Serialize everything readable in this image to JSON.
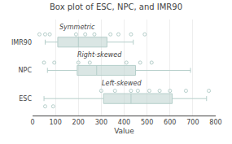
{
  "chart_data": {
    "type": "box",
    "orientation": "horizontal",
    "title": "Box plot of ESC, NPC, and IMR90",
    "xlabel": "Value",
    "categories": [
      "ESC",
      "NPC",
      "IMR90"
    ],
    "q1": [
      310,
      195,
      110
    ],
    "median": [
      430,
      280,
      200
    ],
    "q3": [
      610,
      450,
      325
    ],
    "whisker_low": [
      50,
      65,
      55
    ],
    "whisker_high": [
      760,
      690,
      440
    ],
    "outliers_above": [
      [
        300,
        360,
        430,
        460,
        510,
        555,
        600,
        670,
        770
      ],
      [
        50,
        95,
        200,
        250,
        410,
        470,
        520
      ],
      [
        30,
        55,
        75,
        190,
        230,
        270,
        340,
        375,
        430,
        490
      ]
    ],
    "outliers_below": [
      [
        55,
        90
      ],
      [],
      []
    ],
    "annotations": [
      {
        "text": "Left-skewed",
        "x": 390,
        "category": "ESC"
      },
      {
        "text": "Right-skewed",
        "x": 295,
        "category": "NPC"
      },
      {
        "text": "Symmetric",
        "x": 195,
        "category": "IMR90"
      }
    ],
    "xlim": [
      0,
      800
    ],
    "xticks": [
      0,
      100,
      200,
      300,
      400,
      500,
      600,
      700,
      800
    ],
    "grid": true,
    "color": "#b5ceca"
  }
}
